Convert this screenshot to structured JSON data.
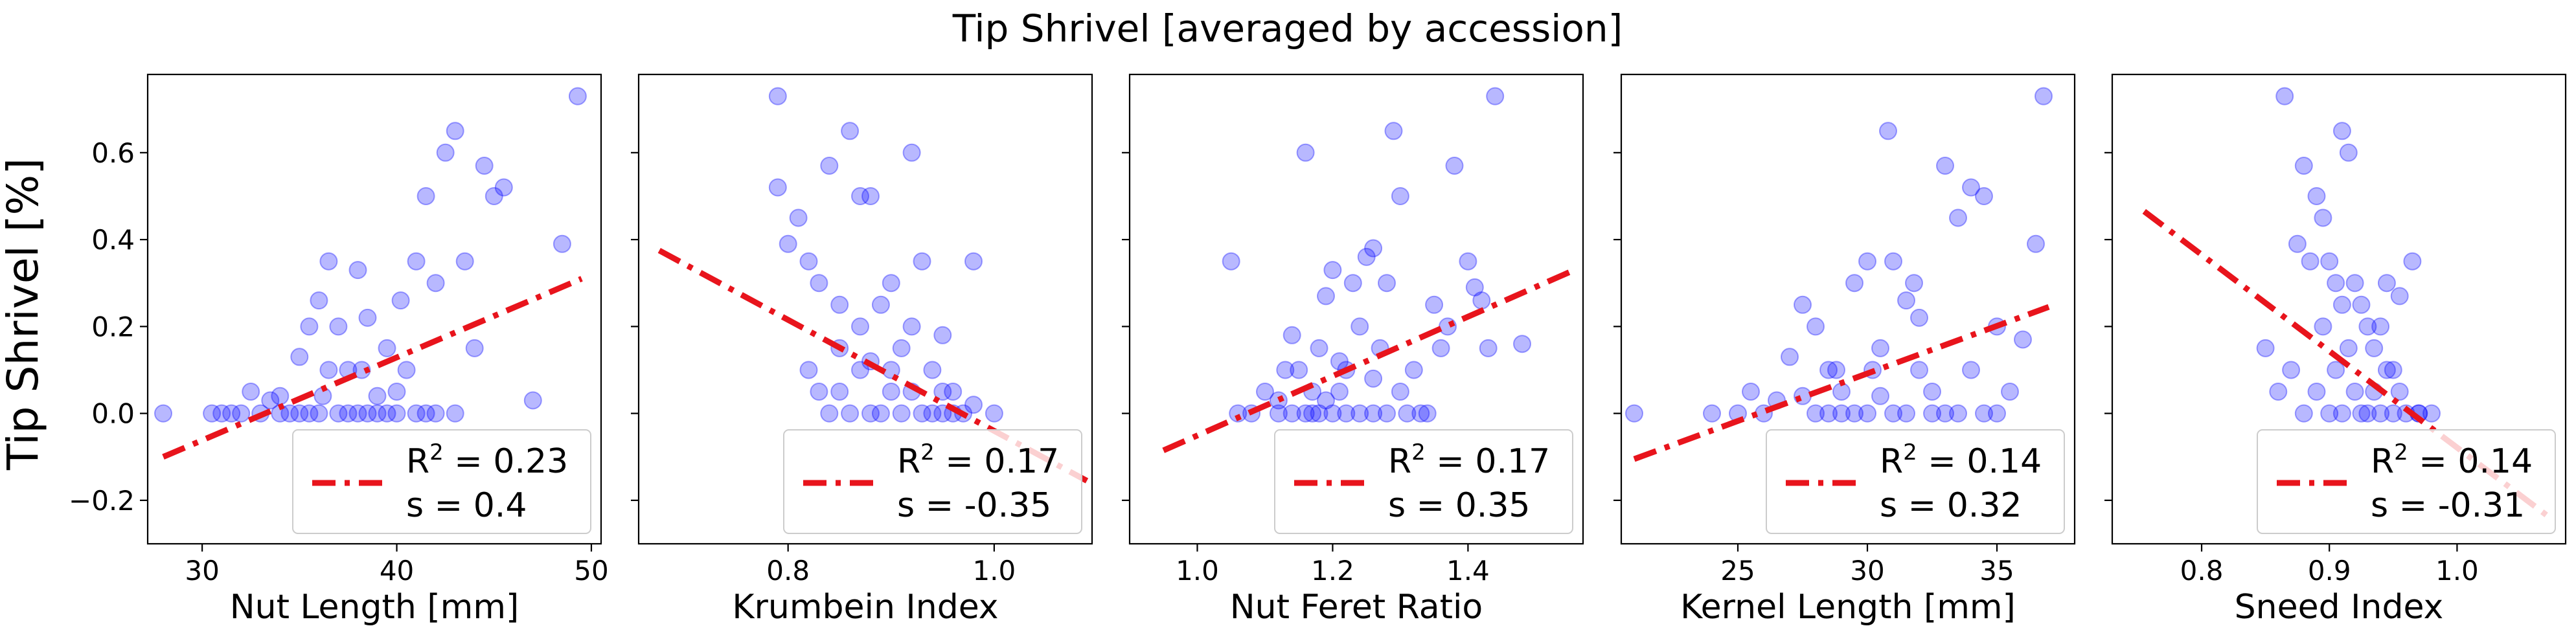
{
  "figure_title": "Tip Shrivel [averaged by accession]",
  "ylabel": "Tip Shrivel [%]",
  "colors": {
    "points": "#0000ff",
    "fit": "#e8141c"
  },
  "chart_data": [
    {
      "type": "scatter",
      "xlabel": "Nut Length [mm]",
      "xlim": [
        27.2,
        50.5
      ],
      "ylim": [
        -0.3,
        0.78
      ],
      "xticks": [
        30,
        40,
        50
      ],
      "yticks": [
        -0.2,
        0.0,
        0.2,
        0.4,
        0.6
      ],
      "yticklabels": [
        "−0.2",
        "0.0",
        "0.2",
        "0.4",
        "0.6"
      ],
      "fit": {
        "x": [
          28.0,
          49.5
        ],
        "y": [
          -0.1,
          0.31
        ]
      },
      "legend": {
        "r2": "0.23",
        "s": "0.4"
      },
      "points": [
        [
          28.0,
          0.0
        ],
        [
          30.5,
          0.0
        ],
        [
          31.0,
          0.0
        ],
        [
          31.5,
          0.0
        ],
        [
          32.0,
          0.0
        ],
        [
          32.5,
          0.05
        ],
        [
          33.0,
          0.0
        ],
        [
          33.5,
          0.03
        ],
        [
          34.0,
          0.0
        ],
        [
          34.5,
          0.0
        ],
        [
          35.0,
          0.13
        ],
        [
          35.5,
          0.2
        ],
        [
          36.0,
          0.26
        ],
        [
          36.5,
          0.35
        ],
        [
          37.0,
          0.0
        ],
        [
          37.5,
          0.1
        ],
        [
          38.0,
          0.33
        ],
        [
          38.5,
          0.22
        ],
        [
          39.0,
          0.0
        ],
        [
          39.5,
          0.15
        ],
        [
          40.0,
          0.05
        ],
        [
          41.0,
          0.35
        ],
        [
          41.5,
          0.5
        ],
        [
          42.0,
          0.0
        ],
        [
          42.5,
          0.6
        ],
        [
          43.0,
          0.65
        ],
        [
          43.5,
          0.35
        ],
        [
          44.0,
          0.15
        ],
        [
          44.5,
          0.57
        ],
        [
          45.0,
          0.5
        ],
        [
          45.5,
          0.52
        ],
        [
          47.0,
          0.03
        ],
        [
          48.5,
          0.39
        ],
        [
          49.3,
          0.73
        ],
        [
          34.0,
          0.04
        ],
        [
          35.0,
          0.0
        ],
        [
          36.0,
          0.0
        ],
        [
          36.5,
          0.1
        ],
        [
          37.0,
          0.2
        ],
        [
          37.5,
          0.0
        ],
        [
          38.0,
          0.0
        ],
        [
          38.5,
          0.0
        ],
        [
          39.0,
          0.04
        ],
        [
          39.5,
          0.0
        ],
        [
          40.0,
          0.0
        ],
        [
          40.5,
          0.1
        ],
        [
          41.0,
          0.0
        ],
        [
          41.5,
          0.0
        ],
        [
          42.0,
          0.3
        ],
        [
          43.0,
          0.0
        ],
        [
          35.5,
          0.0
        ],
        [
          36.2,
          0.04
        ],
        [
          38.2,
          0.1
        ],
        [
          40.2,
          0.26
        ]
      ]
    },
    {
      "type": "scatter",
      "xlabel": "Krumbein Index",
      "xlim": [
        0.655,
        1.095
      ],
      "ylim": [
        -0.3,
        0.78
      ],
      "xticks": [
        0.8,
        1.0
      ],
      "yticks": [
        -0.2,
        0.0,
        0.2,
        0.4,
        0.6
      ],
      "yticklabels": [
        "",
        "",
        "",
        "",
        ""
      ],
      "fit": {
        "x": [
          0.675,
          1.09
        ],
        "y": [
          0.375,
          -0.155
        ]
      },
      "legend": {
        "r2": "0.17",
        "s": "-0.35"
      },
      "points": [
        [
          0.79,
          0.73
        ],
        [
          0.79,
          0.52
        ],
        [
          0.8,
          0.39
        ],
        [
          0.82,
          0.35
        ],
        [
          0.84,
          0.57
        ],
        [
          0.86,
          0.65
        ],
        [
          0.87,
          0.5
        ],
        [
          0.88,
          0.5
        ],
        [
          0.92,
          0.6
        ],
        [
          0.93,
          0.35
        ],
        [
          0.98,
          0.35
        ],
        [
          0.81,
          0.45
        ],
        [
          0.83,
          0.3
        ],
        [
          0.85,
          0.25
        ],
        [
          0.87,
          0.2
        ],
        [
          0.89,
          0.25
        ],
        [
          0.9,
          0.3
        ],
        [
          0.91,
          0.15
        ],
        [
          0.92,
          0.05
        ],
        [
          0.94,
          0.1
        ],
        [
          0.95,
          0.05
        ],
        [
          0.96,
          0.0
        ],
        [
          0.97,
          0.0
        ],
        [
          0.98,
          0.02
        ],
        [
          1.0,
          0.0
        ],
        [
          0.82,
          0.1
        ],
        [
          0.84,
          0.0
        ],
        [
          0.85,
          0.05
        ],
        [
          0.86,
          0.0
        ],
        [
          0.88,
          0.0
        ],
        [
          0.89,
          0.0
        ],
        [
          0.9,
          0.05
        ],
        [
          0.91,
          0.0
        ],
        [
          0.93,
          0.0
        ],
        [
          0.94,
          0.0
        ],
        [
          0.95,
          0.0
        ],
        [
          0.96,
          0.05
        ],
        [
          0.87,
          0.1
        ],
        [
          0.85,
          0.15
        ],
        [
          0.83,
          0.05
        ],
        [
          0.92,
          0.2
        ],
        [
          0.9,
          0.1
        ],
        [
          0.88,
          0.12
        ],
        [
          0.95,
          0.18
        ]
      ]
    },
    {
      "type": "scatter",
      "xlabel": "Nut Feret Ratio",
      "xlim": [
        0.9,
        1.57
      ],
      "ylim": [
        -0.3,
        0.78
      ],
      "xticks": [
        1.0,
        1.2,
        1.4
      ],
      "yticks": [
        -0.2,
        0.0,
        0.2,
        0.4,
        0.6
      ],
      "yticklabels": [
        "",
        "",
        "",
        "",
        ""
      ],
      "fit": {
        "x": [
          0.95,
          1.55
        ],
        "y": [
          -0.085,
          0.325
        ]
      },
      "legend": {
        "r2": "0.17",
        "s": "0.35"
      },
      "points": [
        [
          1.05,
          0.35
        ],
        [
          1.06,
          0.0
        ],
        [
          1.08,
          0.0
        ],
        [
          1.1,
          0.05
        ],
        [
          1.12,
          0.03
        ],
        [
          1.13,
          0.1
        ],
        [
          1.14,
          0.18
        ],
        [
          1.15,
          0.1
        ],
        [
          1.16,
          0.6
        ],
        [
          1.17,
          0.0
        ],
        [
          1.18,
          0.15
        ],
        [
          1.19,
          0.27
        ],
        [
          1.2,
          0.33
        ],
        [
          1.21,
          0.05
        ],
        [
          1.22,
          0.1
        ],
        [
          1.23,
          0.3
        ],
        [
          1.24,
          0.2
        ],
        [
          1.25,
          0.36
        ],
        [
          1.26,
          0.38
        ],
        [
          1.27,
          0.15
        ],
        [
          1.28,
          0.3
        ],
        [
          1.29,
          0.65
        ],
        [
          1.3,
          0.5
        ],
        [
          1.31,
          0.0
        ],
        [
          1.32,
          0.1
        ],
        [
          1.33,
          0.0
        ],
        [
          1.34,
          0.0
        ],
        [
          1.35,
          0.25
        ],
        [
          1.36,
          0.15
        ],
        [
          1.37,
          0.2
        ],
        [
          1.38,
          0.57
        ],
        [
          1.4,
          0.35
        ],
        [
          1.41,
          0.29
        ],
        [
          1.42,
          0.26
        ],
        [
          1.43,
          0.15
        ],
        [
          1.44,
          0.73
        ],
        [
          1.48,
          0.16
        ],
        [
          1.12,
          0.0
        ],
        [
          1.14,
          0.0
        ],
        [
          1.16,
          0.0
        ],
        [
          1.18,
          0.0
        ],
        [
          1.2,
          0.0
        ],
        [
          1.22,
          0.0
        ],
        [
          1.24,
          0.0
        ],
        [
          1.26,
          0.0
        ],
        [
          1.28,
          0.0
        ],
        [
          1.3,
          0.05
        ],
        [
          1.17,
          0.05
        ],
        [
          1.21,
          0.12
        ],
        [
          1.26,
          0.08
        ],
        [
          1.19,
          0.03
        ]
      ]
    },
    {
      "type": "scatter",
      "xlabel": "Kernel Length [mm]",
      "xlim": [
        20.5,
        38.0
      ],
      "ylim": [
        -0.3,
        0.78
      ],
      "xticks": [
        25,
        30,
        35
      ],
      "yticks": [
        -0.2,
        0.0,
        0.2,
        0.4,
        0.6
      ],
      "yticklabels": [
        "",
        "",
        "",
        "",
        ""
      ],
      "fit": {
        "x": [
          21.0,
          37.0
        ],
        "y": [
          -0.105,
          0.245
        ]
      },
      "legend": {
        "r2": "0.14",
        "s": "0.32"
      },
      "points": [
        [
          21.0,
          0.0
        ],
        [
          24.0,
          0.0
        ],
        [
          25.0,
          0.0
        ],
        [
          25.5,
          0.05
        ],
        [
          26.0,
          0.0
        ],
        [
          26.5,
          0.03
        ],
        [
          27.0,
          0.13
        ],
        [
          27.5,
          0.25
        ],
        [
          28.0,
          0.2
        ],
        [
          28.5,
          0.1
        ],
        [
          29.0,
          0.0
        ],
        [
          29.5,
          0.3
        ],
        [
          30.0,
          0.35
        ],
        [
          30.5,
          0.15
        ],
        [
          30.8,
          0.65
        ],
        [
          31.0,
          0.35
        ],
        [
          31.5,
          0.26
        ],
        [
          32.0,
          0.22
        ],
        [
          32.5,
          0.0
        ],
        [
          33.0,
          0.57
        ],
        [
          33.5,
          0.45
        ],
        [
          34.0,
          0.52
        ],
        [
          34.5,
          0.5
        ],
        [
          35.0,
          0.2
        ],
        [
          35.5,
          0.05
        ],
        [
          36.0,
          0.17
        ],
        [
          36.5,
          0.39
        ],
        [
          36.8,
          0.73
        ],
        [
          27.5,
          0.04
        ],
        [
          28.0,
          0.0
        ],
        [
          28.5,
          0.0
        ],
        [
          29.0,
          0.05
        ],
        [
          29.5,
          0.0
        ],
        [
          30.0,
          0.0
        ],
        [
          30.5,
          0.04
        ],
        [
          31.0,
          0.0
        ],
        [
          31.5,
          0.0
        ],
        [
          32.0,
          0.1
        ],
        [
          32.5,
          0.05
        ],
        [
          33.0,
          0.0
        ],
        [
          33.5,
          0.0
        ],
        [
          34.0,
          0.1
        ],
        [
          34.5,
          0.0
        ],
        [
          35.0,
          0.0
        ],
        [
          28.8,
          0.1
        ],
        [
          30.2,
          0.1
        ],
        [
          31.8,
          0.3
        ]
      ]
    },
    {
      "type": "scatter",
      "xlabel": "Sneed Index",
      "xlim": [
        0.73,
        1.085
      ],
      "ylim": [
        -0.3,
        0.78
      ],
      "xticks": [
        0.8,
        0.9,
        1.0
      ],
      "yticks": [
        -0.2,
        0.0,
        0.2,
        0.4,
        0.6
      ],
      "yticklabels": [
        "",
        "",
        "",
        "",
        ""
      ],
      "fit": {
        "x": [
          0.755,
          1.075
        ],
        "y": [
          0.465,
          -0.245
        ]
      },
      "legend": {
        "r2": "0.14",
        "s": "-0.31"
      },
      "points": [
        [
          0.865,
          0.73
        ],
        [
          0.88,
          0.57
        ],
        [
          0.89,
          0.5
        ],
        [
          0.895,
          0.45
        ],
        [
          0.91,
          0.65
        ],
        [
          0.915,
          0.6
        ],
        [
          0.875,
          0.39
        ],
        [
          0.885,
          0.35
        ],
        [
          0.9,
          0.35
        ],
        [
          0.905,
          0.3
        ],
        [
          0.92,
          0.3
        ],
        [
          0.925,
          0.25
        ],
        [
          0.93,
          0.2
        ],
        [
          0.935,
          0.15
        ],
        [
          0.94,
          0.2
        ],
        [
          0.945,
          0.1
        ],
        [
          0.95,
          0.1
        ],
        [
          0.955,
          0.05
        ],
        [
          0.965,
          0.35
        ],
        [
          0.97,
          0.0
        ],
        [
          0.85,
          0.15
        ],
        [
          0.86,
          0.05
        ],
        [
          0.87,
          0.1
        ],
        [
          0.88,
          0.0
        ],
        [
          0.89,
          0.05
        ],
        [
          0.9,
          0.0
        ],
        [
          0.91,
          0.0
        ],
        [
          0.92,
          0.05
        ],
        [
          0.93,
          0.0
        ],
        [
          0.94,
          0.0
        ],
        [
          0.95,
          0.0
        ],
        [
          0.96,
          0.0
        ],
        [
          0.97,
          0.0
        ],
        [
          0.98,
          0.0
        ],
        [
          0.905,
          0.1
        ],
        [
          0.915,
          0.15
        ],
        [
          0.925,
          0.0
        ],
        [
          0.935,
          0.05
        ],
        [
          0.945,
          0.3
        ],
        [
          0.955,
          0.27
        ],
        [
          0.895,
          0.2
        ],
        [
          0.91,
          0.25
        ]
      ]
    }
  ]
}
